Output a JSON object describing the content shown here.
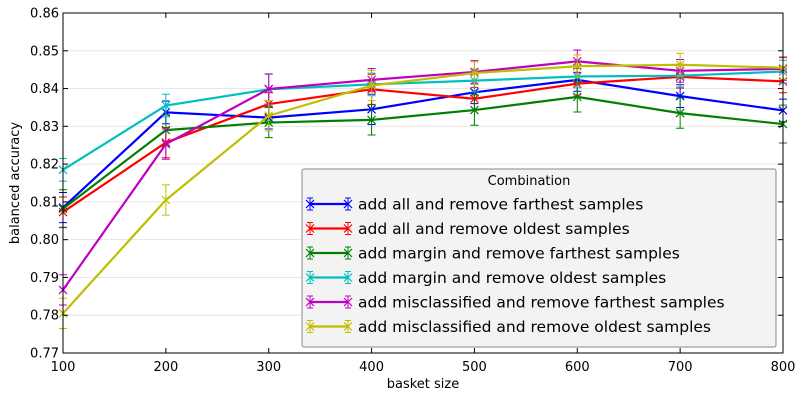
{
  "chart_data": {
    "type": "line",
    "xlabel": "basket size",
    "ylabel": "balanced accuracy",
    "xlim": [
      100,
      800
    ],
    "ylim": [
      0.77,
      0.86
    ],
    "xticks": [
      "100",
      "200",
      "300",
      "400",
      "500",
      "600",
      "700",
      "800"
    ],
    "yticks": [
      "0.77",
      "0.78",
      "0.79",
      "0.80",
      "0.81",
      "0.82",
      "0.83",
      "0.84",
      "0.85",
      "0.86"
    ],
    "grid": "horizontal",
    "legend": {
      "title": "Combination",
      "placement": "lower-right"
    },
    "x": [
      100,
      200,
      300,
      400,
      500,
      600,
      700,
      800
    ],
    "series": [
      {
        "name": "add all and remove farthest samples",
        "color": "#0000ff",
        "values": [
          0.8085,
          0.8337,
          0.8323,
          0.8345,
          0.839,
          0.8423,
          0.838,
          0.8342
        ],
        "errors": [
          0.004,
          0.003,
          0.003,
          0.004,
          0.003,
          0.003,
          0.003,
          0.003
        ]
      },
      {
        "name": "add all and remove oldest samples",
        "color": "#ff0000",
        "values": [
          0.8073,
          0.8257,
          0.8359,
          0.8398,
          0.8373,
          0.8413,
          0.8431,
          0.8419
        ],
        "errors": [
          0.004,
          0.004,
          0.003,
          0.004,
          0.003,
          0.003,
          0.003,
          0.003
        ]
      },
      {
        "name": "add margin and remove farthest samples",
        "color": "#008000",
        "values": [
          0.8082,
          0.829,
          0.831,
          0.8317,
          0.8343,
          0.8378,
          0.8335,
          0.8306
        ],
        "errors": [
          0.005,
          0.004,
          0.004,
          0.004,
          0.004,
          0.004,
          0.004,
          0.005
        ]
      },
      {
        "name": "add margin and remove oldest samples",
        "color": "#00bfbf",
        "values": [
          0.8185,
          0.8355,
          0.8398,
          0.8411,
          0.8421,
          0.8432,
          0.8434,
          0.8445
        ],
        "errors": [
          0.003,
          0.003,
          0.004,
          0.003,
          0.003,
          0.003,
          0.003,
          0.003
        ]
      },
      {
        "name": "add misclassified and remove farthest samples",
        "color": "#bf00bf",
        "values": [
          0.7867,
          0.8253,
          0.8399,
          0.8423,
          0.8444,
          0.8472,
          0.8447,
          0.8452
        ],
        "errors": [
          0.004,
          0.004,
          0.004,
          0.003,
          0.003,
          0.003,
          0.003,
          0.003
        ]
      },
      {
        "name": "add misclassified and remove oldest samples",
        "color": "#bfbf00",
        "values": [
          0.7805,
          0.8105,
          0.8328,
          0.8408,
          0.8441,
          0.8459,
          0.8463,
          0.8455
        ],
        "errors": [
          0.004,
          0.004,
          0.004,
          0.004,
          0.003,
          0.003,
          0.003,
          0.003
        ]
      }
    ]
  }
}
